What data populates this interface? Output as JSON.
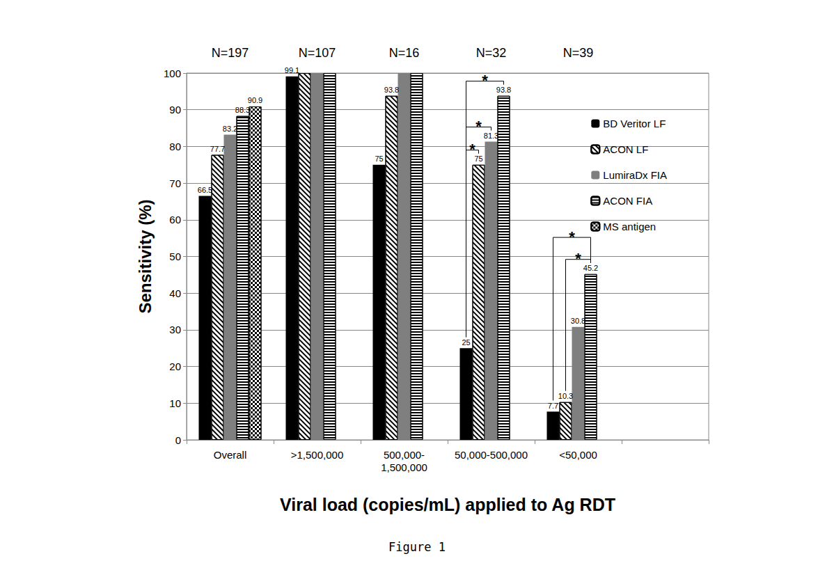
{
  "chart_data": {
    "type": "bar",
    "title": "Figure 1",
    "x_label": "Viral load (copies/mL) applied to Ag RDT",
    "y_label": "Sensitivity (%)",
    "categories": [
      "Overall",
      ">1,500,000",
      "500,000-\n1,500,000",
      "50,000-500,000",
      "<50,000",
      null
    ],
    "annotations": [
      "N=197",
      "N=107",
      "N=16",
      "N=32",
      "N=39",
      null
    ],
    "series": [
      {
        "name": "BD Veritor LF",
        "color": "#000000",
        "marker": "solid",
        "values": [
          66.5,
          99.1,
          75,
          25,
          7.7,
          null
        ],
        "value_labels": [
          "66.5",
          "99.1",
          "75",
          "25",
          "7.7",
          null
        ]
      },
      {
        "name": "ACON LF",
        "color": "#000000",
        "marker": "diagonal",
        "values": [
          77.7,
          100,
          93.8,
          75,
          10.3,
          null
        ],
        "value_labels": [
          "77.7",
          null,
          "93.8",
          "75",
          "10.3",
          null
        ]
      },
      {
        "name": "LumiraDx FIA",
        "color": "#7f7f7f",
        "marker": "solid",
        "values": [
          83.2,
          100,
          100,
          81.3,
          30.8,
          null
        ],
        "value_labels": [
          "83.2",
          null,
          null,
          "81.3",
          "30.8",
          null
        ]
      },
      {
        "name": "ACON FIA",
        "color": "#000000",
        "marker": "horizontal",
        "values": [
          88.3,
          100,
          100,
          93.8,
          45.2,
          null
        ],
        "value_labels": [
          "88.3",
          null,
          null,
          "93.8",
          "45.2",
          null
        ]
      },
      {
        "name": "MS antigen",
        "color": "#000000",
        "marker": "checker",
        "values": [
          90.9,
          null,
          null,
          null,
          null,
          null
        ],
        "value_labels": [
          "90.9",
          null,
          null,
          null,
          null,
          null
        ]
      }
    ],
    "significance": [
      {
        "category": "50,000-500,000",
        "from": "BD Veritor LF",
        "to": "ACON LF",
        "label": "*"
      },
      {
        "category": "50,000-500,000",
        "from": "BD Veritor LF",
        "to": "LumiraDx FIA",
        "label": "*"
      },
      {
        "category": "50,000-500,000",
        "from": "BD Veritor LF",
        "to": "ACON FIA",
        "label": "*"
      },
      {
        "category": "<50,000",
        "from": "ACON LF",
        "to": "ACON FIA",
        "label": "*"
      },
      {
        "category": "<50,000",
        "from": "BD Veritor LF",
        "to": "ACON FIA",
        "label": "*"
      }
    ],
    "ylim": [
      0,
      100
    ],
    "yticks": [
      0,
      10,
      20,
      30,
      40,
      50,
      60,
      70,
      80,
      90,
      100
    ],
    "grid": true,
    "legend": "top-right",
    "data_labels": true
  }
}
